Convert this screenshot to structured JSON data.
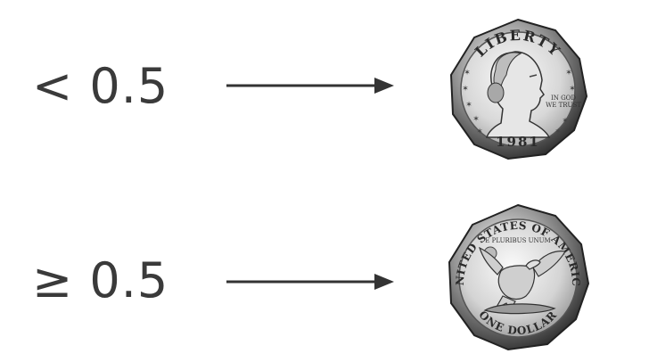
{
  "rows": [
    {
      "threshold_label": "< 0.5",
      "coin": {
        "side": "obverse",
        "top_text": "LIBERTY",
        "right_text_line1": "IN GOD",
        "right_text_line2": "WE TRUST",
        "year": "1981"
      }
    },
    {
      "threshold_label": "≥ 0.5",
      "coin": {
        "side": "reverse",
        "top_text": "UNITED STATES OF AMERICA",
        "motto": "E PLURIBUS UNUM",
        "bottom_text": "ONE DOLLAR"
      }
    }
  ],
  "colors": {
    "text": "#3a3a3a",
    "arrow": "#333333",
    "coin_light": "#f2f2f2",
    "coin_dark": "#1e1e1e"
  },
  "icons": [
    "arrow-right",
    "coin-obverse-portrait",
    "coin-reverse-eagle"
  ]
}
